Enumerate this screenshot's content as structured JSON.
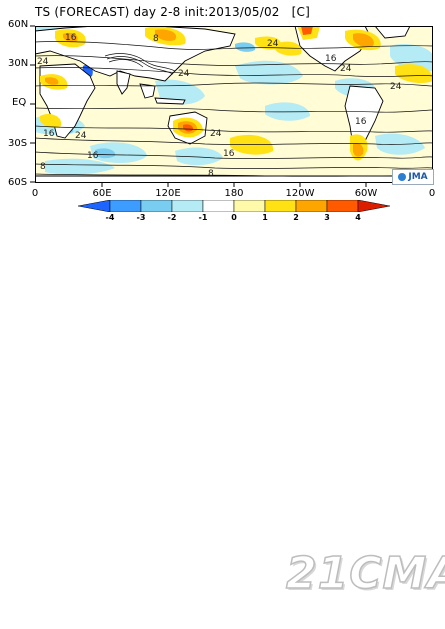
{
  "title": "TS (FORECAST) day 2-8 init:2013/05/02   [C]",
  "lat_labels": [
    "60N",
    "30N",
    "EQ",
    "30S",
    "60S"
  ],
  "lon_labels": [
    "0",
    "60E",
    "120E",
    "180",
    "120W",
    "60W",
    "0"
  ],
  "colorbar": {
    "labels": [
      "-4",
      "-3",
      "-2",
      "-1",
      "0",
      "1",
      "2",
      "3",
      "4"
    ],
    "colors": [
      "#1e64ff",
      "#3c9cff",
      "#78cdf0",
      "#b4ebf5",
      "#ffffff",
      "#fffaaa",
      "#ffe114",
      "#ffa500",
      "#ff5a00",
      "#dc1e00"
    ]
  },
  "contour_labels": [
    "16",
    "8",
    "24",
    "24",
    "16",
    "24",
    "24",
    "24",
    "16",
    "24",
    "24",
    "16",
    "16",
    "8",
    "8",
    "16"
  ],
  "logo_text": "JMA",
  "watermark": "21CMA",
  "map_colors": {
    "ocean_base": "#fffcd6",
    "land": "#ffffff",
    "coast": "#000000",
    "contour": "#111111"
  }
}
